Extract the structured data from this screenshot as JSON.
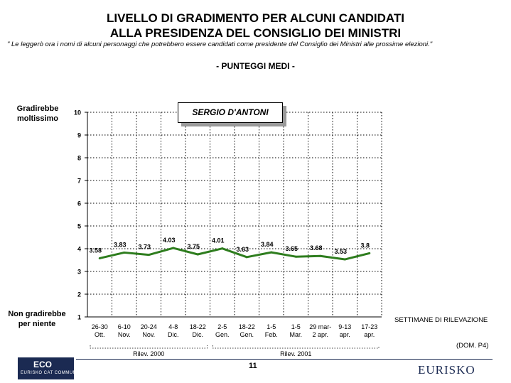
{
  "header": {
    "title_line1": "LIVELLO DI GRADIMENTO PER ALCUNI CANDIDATI",
    "title_line2": "ALLA PRESIDENZA DEL CONSIGLIO DEI MINISTRI",
    "footnote": "\" Le leggerò ora i nomi di alcuni personaggi che potrebbero essere candidati come presidente del Consiglio dei Ministri alle prossime elezioni.\"",
    "subtitle": "- PUNTEGGI MEDI -"
  },
  "y_axis_top_label": [
    "Gradirebbe",
    "moltissimo"
  ],
  "y_axis_bottom_label": [
    "Non gradirebbe",
    "per niente"
  ],
  "x_axis_caption": "SETTIMANE DI RILEVAZIONE",
  "source_note": "(DOM. P4)",
  "page_number": "11",
  "logos": {
    "eco_big": "ECO",
    "eco_small": "EURISKO CAT COMMUNIS",
    "eurisko": "EURISKO"
  },
  "colors": {
    "series": "#2e7d1e",
    "grid": "#000000",
    "brand": "#1b2a52"
  },
  "chart_data": {
    "type": "line",
    "legend_box": "SERGIO D'ANTONI",
    "categories": [
      [
        "26-30",
        "Ott."
      ],
      [
        "6-10",
        "Nov."
      ],
      [
        "20-24",
        "Nov."
      ],
      [
        "4-8",
        "Dic."
      ],
      [
        "18-22",
        "Dic."
      ],
      [
        "2-5",
        "Gen."
      ],
      [
        "18-22",
        "Gen."
      ],
      [
        "1-5",
        "Feb."
      ],
      [
        "1-5",
        "Mar."
      ],
      [
        "29 mar-",
        "2 apr."
      ],
      [
        "9-13",
        "apr."
      ],
      [
        "17-23",
        "apr."
      ]
    ],
    "values": [
      3.58,
      3.83,
      3.73,
      4.03,
      3.75,
      4.01,
      3.63,
      3.84,
      3.65,
      3.68,
      3.53,
      3.8
    ],
    "value_labels": [
      "3.58",
      "3.83",
      "3.73",
      "4.03",
      "3.75",
      "4.01",
      "3.63",
      "3.84",
      "3.65",
      "3.68",
      "3.53",
      "3.8"
    ],
    "ylim": [
      1,
      10
    ],
    "yticks": [
      "1",
      "2",
      "3",
      "4",
      "5",
      "6",
      "7",
      "8",
      "9",
      "10"
    ],
    "grid": true,
    "period_groups": [
      {
        "label": "Rilev. 2000",
        "from": 0,
        "to": 4
      },
      {
        "label": "Rilev. 2001",
        "from": 5,
        "to": 11
      }
    ]
  }
}
